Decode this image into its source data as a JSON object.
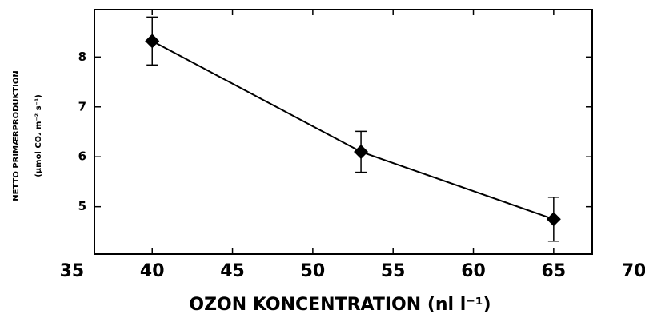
{
  "chart_data": {
    "type": "line",
    "xlabel": "OZON KONCENTRATION (nl l⁻¹)",
    "ylabel": [
      "NETTO PRIMÆRPRODUKTION",
      "(µmol CO₂ m⁻² s⁻¹)"
    ],
    "x": [
      40,
      53,
      65
    ],
    "series": [
      {
        "color": "#000000",
        "values": [
          8.32,
          6.1,
          4.75
        ],
        "errors": [
          0.48,
          0.41,
          0.44
        ]
      }
    ],
    "xlim": [
      36.4,
      67.4
    ],
    "xticks": [
      35,
      40,
      45,
      50,
      55,
      60,
      65,
      70
    ],
    "ylim": [
      4.05,
      8.95
    ],
    "yticks": [
      5,
      6,
      7,
      8
    ],
    "grid": false
  }
}
